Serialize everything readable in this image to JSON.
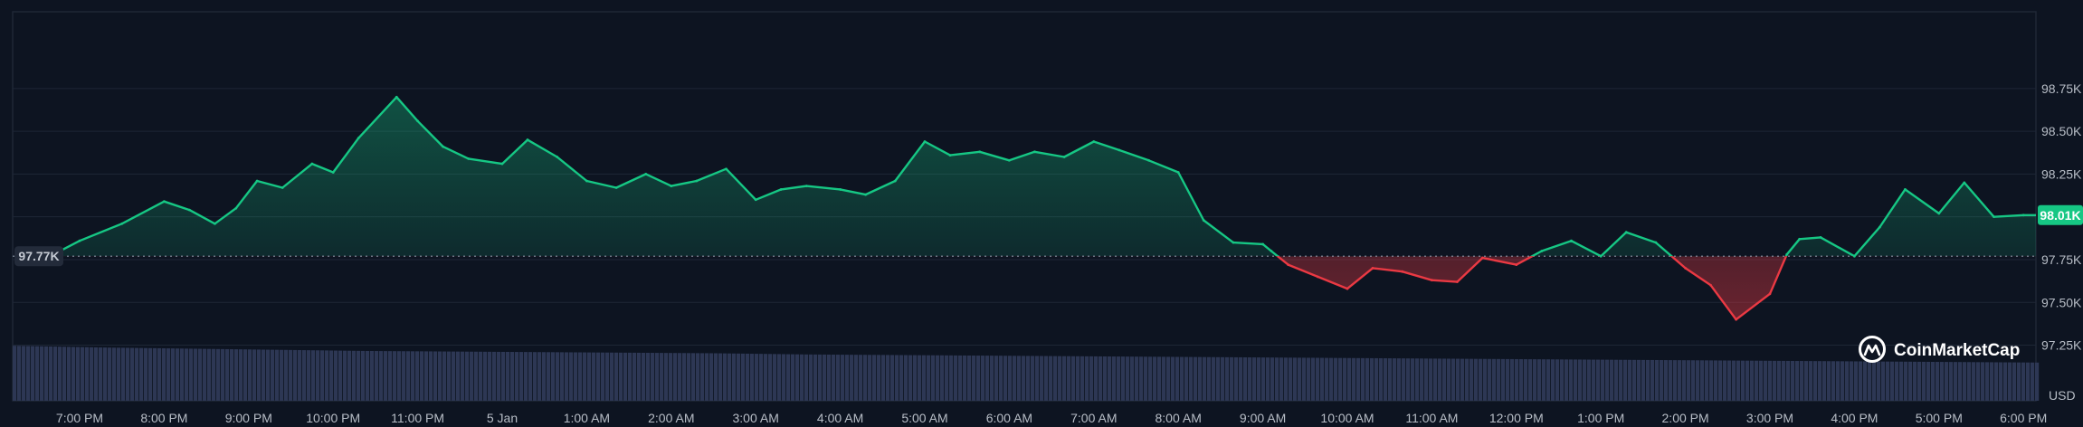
{
  "chart_data": {
    "type": "area",
    "currency": "USD",
    "baseline": 97.77,
    "baseline_label": "97.77K",
    "last_price_label": "98.01K",
    "colors": {
      "background": "#0d1421",
      "up": "#16c784",
      "down": "#ea3943",
      "volume": "#2d3754",
      "grid": "#1e2636"
    },
    "ylim": [
      97.2,
      98.95
    ],
    "y_ticks": [
      {
        "value": 98.75,
        "label": "98.75K"
      },
      {
        "value": 98.5,
        "label": "98.50K"
      },
      {
        "value": 98.25,
        "label": "98.25K"
      },
      {
        "value": 98.0,
        "label": "98.00K"
      },
      {
        "value": 97.75,
        "label": "97.75K"
      },
      {
        "value": 97.5,
        "label": "97.50K"
      },
      {
        "value": 97.25,
        "label": "97.25K"
      }
    ],
    "x_ticks": [
      "7:00 PM",
      "8:00 PM",
      "9:00 PM",
      "10:00 PM",
      "11:00 PM",
      "5 Jan",
      "1:00 AM",
      "2:00 AM",
      "3:00 AM",
      "4:00 AM",
      "5:00 AM",
      "6:00 AM",
      "7:00 AM",
      "8:00 AM",
      "9:00 AM",
      "10:00 AM",
      "11:00 AM",
      "12:00 PM",
      "1:00 PM",
      "2:00 PM",
      "3:00 PM",
      "4:00 PM",
      "5:00 PM",
      "6:00 PM"
    ],
    "x_hours_range": [
      -0.37,
      23.2
    ],
    "x": [
      -0.35,
      0.0,
      0.5,
      1.0,
      1.3,
      1.6,
      1.85,
      2.1,
      2.4,
      2.75,
      3.0,
      3.3,
      3.75,
      4.0,
      4.3,
      4.6,
      5.0,
      5.3,
      5.65,
      6.0,
      6.35,
      6.7,
      7.0,
      7.3,
      7.65,
      8.0,
      8.3,
      8.6,
      9.0,
      9.3,
      9.65,
      10.0,
      10.3,
      10.65,
      11.0,
      11.3,
      11.65,
      12.0,
      12.3,
      12.65,
      13.0,
      13.3,
      13.65,
      14.0,
      14.1,
      14.3,
      14.65,
      15.0,
      15.3,
      15.65,
      16.0,
      16.3,
      16.6,
      17.0,
      17.3,
      17.65,
      18.0,
      18.3,
      18.65,
      19.0,
      19.3,
      19.6,
      20.0,
      20.2,
      20.35,
      20.6,
      21.0,
      21.3,
      21.6,
      22.0,
      22.3,
      22.65,
      23.0,
      23.2
    ],
    "y": [
      97.77,
      97.86,
      97.96,
      98.09,
      98.04,
      97.96,
      98.05,
      98.21,
      98.17,
      98.31,
      98.26,
      98.46,
      98.7,
      98.56,
      98.41,
      98.34,
      98.31,
      98.45,
      98.35,
      98.21,
      98.17,
      98.25,
      98.18,
      98.21,
      98.28,
      98.1,
      98.16,
      98.18,
      98.16,
      98.13,
      98.21,
      98.44,
      98.36,
      98.38,
      98.33,
      98.38,
      98.35,
      98.44,
      98.39,
      98.33,
      98.26,
      97.98,
      97.85,
      97.84,
      97.8,
      97.72,
      97.65,
      97.58,
      97.7,
      97.68,
      97.63,
      97.62,
      97.76,
      97.72,
      97.8,
      97.86,
      97.77,
      97.91,
      97.85,
      97.7,
      97.6,
      97.4,
      97.55,
      97.78,
      97.87,
      97.88,
      97.77,
      97.94,
      98.16,
      98.02,
      98.2,
      98.0,
      98.01,
      98.01
    ],
    "volume_level": [
      0.95,
      0.92,
      0.9,
      0.88,
      0.86,
      0.85,
      0.84,
      0.83,
      0.82,
      0.8,
      0.79,
      0.78,
      0.77,
      0.76,
      0.75,
      0.74,
      0.73,
      0.72,
      0.71,
      0.7,
      0.69,
      0.68,
      0.67,
      0.66
    ]
  },
  "watermark": {
    "brand": "CoinMarketCap"
  }
}
